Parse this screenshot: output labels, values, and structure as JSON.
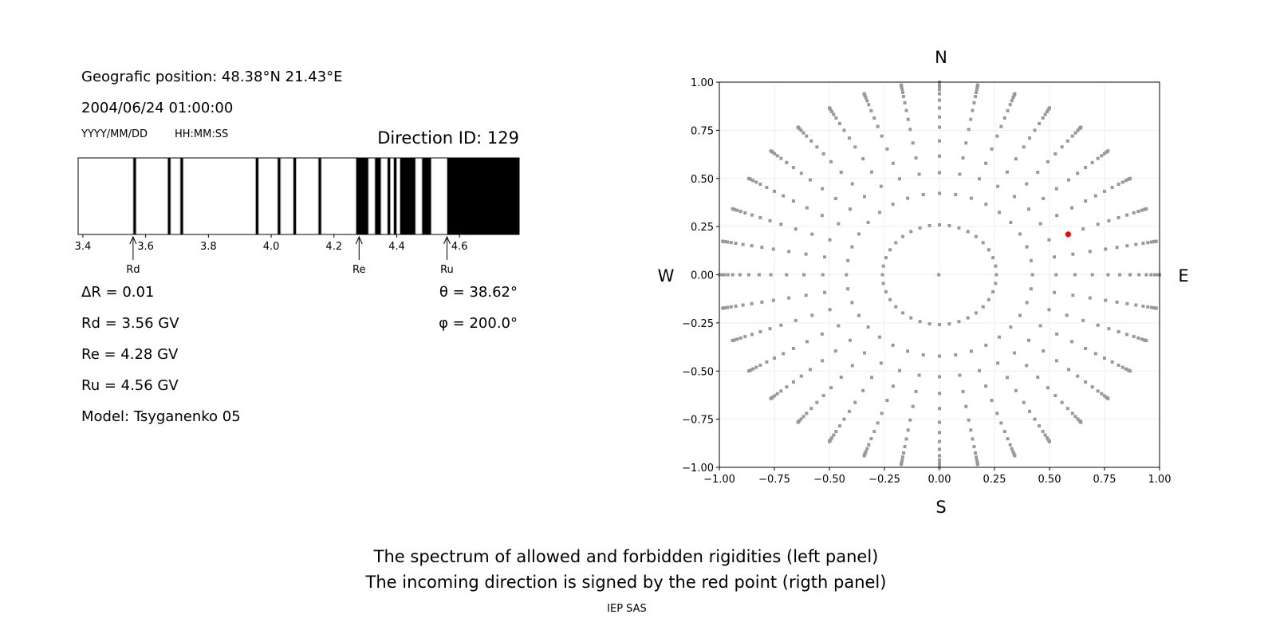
{
  "left_panel": {
    "position": "Geografic position: 48.38°N 21.43°E",
    "datetime": "2004/06/24 01:00:00",
    "date_format": "YYYY/MM/DD",
    "time_format": "HH:MM:SS",
    "direction_id": "Direction ID: 129",
    "delta_r": "ΔR = 0.01",
    "rd": "Rd = 3.56 GV",
    "re": "Re = 4.28 GV",
    "ru": "Ru = 4.56 GV",
    "model": "Model: Tsyganenko 05",
    "theta": "θ = 38.62°",
    "phi": "φ = 200.0°"
  },
  "footer": {
    "line1": "The spectrum of allowed and forbidden rigidities (left panel)",
    "line2": "The incoming direction is signed by the red point (rigth panel)",
    "credit": "IEP SAS"
  },
  "chart_data": [
    {
      "type": "bar",
      "xlim": [
        3.385,
        4.79
      ],
      "xticks": [
        "3.4",
        "3.6",
        "3.8",
        "4.0",
        "4.2",
        "4.4",
        "4.6"
      ],
      "forbidden_intervals": [
        [
          3.56,
          3.57
        ],
        [
          3.67,
          3.68
        ],
        [
          3.71,
          3.72
        ],
        [
          3.95,
          3.96
        ],
        [
          4.02,
          4.03
        ],
        [
          4.07,
          4.08
        ],
        [
          4.15,
          4.16
        ],
        [
          4.27,
          4.31
        ],
        [
          4.33,
          4.35
        ],
        [
          4.37,
          4.38
        ],
        [
          4.39,
          4.4
        ],
        [
          4.41,
          4.46
        ],
        [
          4.48,
          4.51
        ],
        [
          4.56,
          4.79
        ]
      ],
      "markers": [
        {
          "label": "Rd",
          "x": 3.56
        },
        {
          "label": "Re",
          "x": 4.28
        },
        {
          "label": "Ru",
          "x": 4.56
        }
      ],
      "colors": {
        "forbidden": "#000000",
        "allowed": "#ffffff",
        "edge": "#bbbbbb"
      }
    },
    {
      "type": "scatter",
      "xlim": [
        -1,
        1
      ],
      "ylim": [
        -1,
        1
      ],
      "grid": true,
      "xticks": [
        "−1.00",
        "−0.75",
        "−0.50",
        "−0.25",
        "0.00",
        "0.25",
        "0.50",
        "0.75",
        "1.00"
      ],
      "yticks": [
        "−1.00",
        "−0.75",
        "−0.50",
        "−0.25",
        "0.00",
        "0.25",
        "0.50",
        "0.75",
        "1.00"
      ],
      "compass": {
        "n": "N",
        "s": "S",
        "e": "E",
        "w": "W"
      },
      "zenith_rings_deg": [
        15,
        25,
        32,
        38,
        44,
        50,
        55,
        60,
        65,
        70,
        74,
        78,
        82,
        86,
        90
      ],
      "azimuth_step_deg": 10,
      "highlight": {
        "x": 0.585,
        "y": 0.21
      },
      "colors": {
        "points": "#999999",
        "highlight": "#ff0000",
        "grid": "#eeeeee"
      }
    }
  ]
}
